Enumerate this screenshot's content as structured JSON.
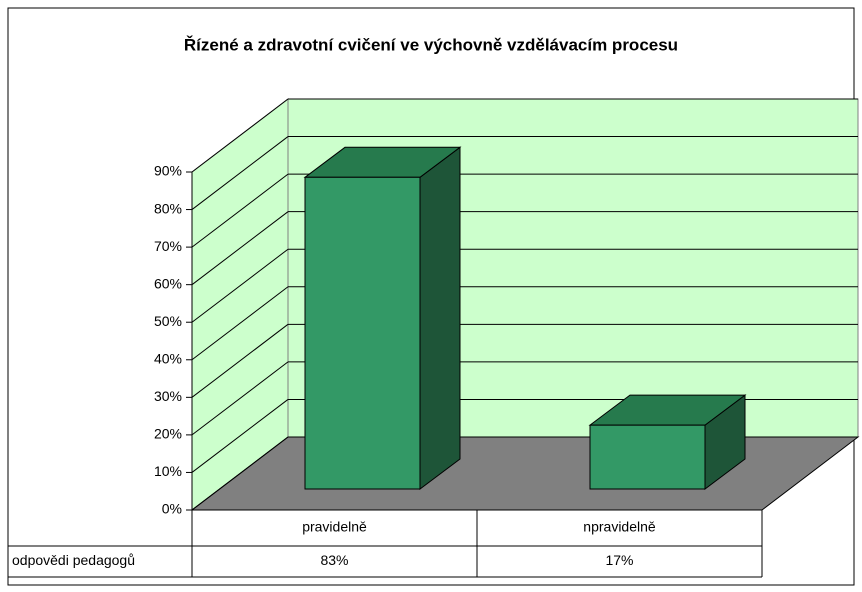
{
  "chart_data": {
    "type": "bar3d",
    "title": "Řízené a zdravotní cvičení ve výchovně vzdělávacím procesu",
    "categories": [
      "pravidelně",
      "npravidelně"
    ],
    "series": [
      {
        "name": "odpovědi pedagogů",
        "color": "#339966",
        "values": [
          83,
          17
        ],
        "value_labels": [
          "83%",
          "17%"
        ]
      }
    ],
    "ylim": [
      0,
      90
    ],
    "yticks": [
      {
        "value": 0,
        "label": "0%"
      },
      {
        "value": 10,
        "label": "10%"
      },
      {
        "value": 20,
        "label": "20%"
      },
      {
        "value": 30,
        "label": "30%"
      },
      {
        "value": 40,
        "label": "40%"
      },
      {
        "value": 50,
        "label": "50%"
      },
      {
        "value": 60,
        "label": "60%"
      },
      {
        "value": 70,
        "label": "70%"
      },
      {
        "value": 80,
        "label": "80%"
      },
      {
        "value": 90,
        "label": "90%"
      }
    ],
    "grid": true,
    "data_table": true
  }
}
